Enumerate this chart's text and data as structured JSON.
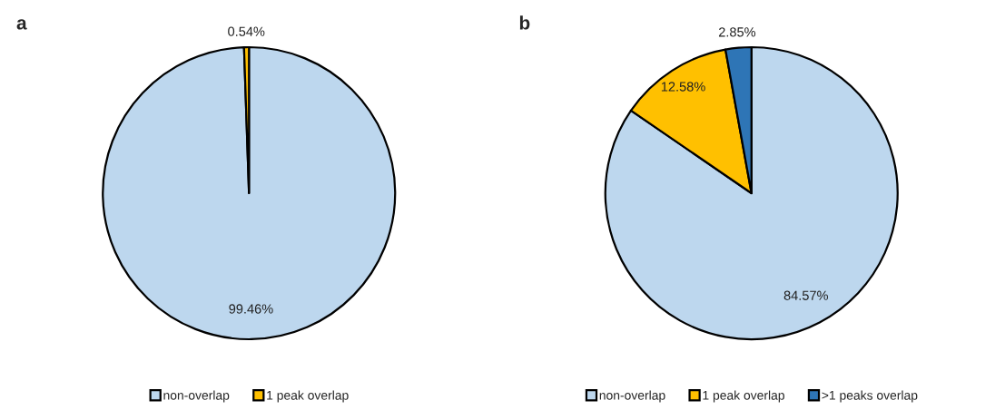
{
  "chart_data": [
    {
      "type": "pie",
      "title": "a",
      "categories": [
        "non-overlap",
        "1 peak overlap"
      ],
      "values": [
        99.46,
        0.54
      ],
      "colors": [
        "#bdd7ee",
        "#ffc000"
      ],
      "value_labels": [
        "99.46%",
        "0.54%"
      ],
      "legend": "bottom"
    },
    {
      "type": "pie",
      "title": "b",
      "categories": [
        "non-overlap",
        "1 peak overlap",
        ">1 peaks overlap"
      ],
      "values": [
        84.57,
        12.58,
        2.85
      ],
      "colors": [
        "#bdd7ee",
        "#ffc000",
        "#2e75b6"
      ],
      "value_labels": [
        "84.57%",
        "12.58%",
        "2.85%"
      ],
      "legend": "bottom"
    }
  ]
}
